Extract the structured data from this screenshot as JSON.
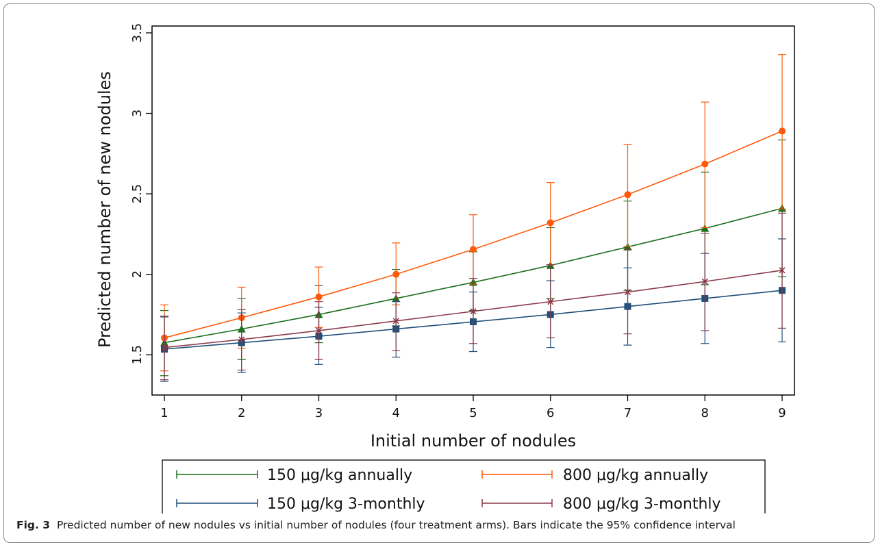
{
  "chart_data": {
    "type": "line",
    "xlabel": "Initial number of nodules",
    "ylabel": "Predicted number of new nodules",
    "xlim": [
      1,
      9
    ],
    "ylim": [
      1.25,
      3.5
    ],
    "x": [
      1,
      2,
      3,
      4,
      5,
      6,
      7,
      8,
      9
    ],
    "x_ticks": [
      "1",
      "2",
      "3",
      "4",
      "5",
      "6",
      "7",
      "8",
      "9"
    ],
    "y_ticks": [
      1.5,
      2,
      2.5,
      3,
      3.5
    ],
    "y_tick_labels": [
      "1.5",
      "2",
      "2.5",
      "3",
      "3.5"
    ],
    "grid": false,
    "legend_position": "bottom",
    "series": [
      {
        "name": "150 μg/kg annually",
        "color": "#1a6e1a",
        "marker": "triangle",
        "values": [
          1.575,
          1.66,
          1.75,
          1.85,
          1.95,
          2.055,
          2.17,
          2.285,
          2.41
        ],
        "lower": [
          1.37,
          1.47,
          1.575,
          1.68,
          1.775,
          1.85,
          1.9,
          1.935,
          1.985
        ],
        "upper": [
          1.775,
          1.85,
          1.93,
          2.03,
          2.14,
          2.29,
          2.455,
          2.635,
          2.835
        ]
      },
      {
        "name": "800 μg/kg annually",
        "color": "#ff5a0a",
        "marker": "circle",
        "values": [
          1.605,
          1.73,
          1.86,
          2.0,
          2.155,
          2.32,
          2.495,
          2.685,
          2.89
        ],
        "lower": [
          1.4,
          1.54,
          1.67,
          1.81,
          1.94,
          2.06,
          2.175,
          2.29,
          2.405
        ],
        "upper": [
          1.81,
          1.92,
          2.045,
          2.195,
          2.37,
          2.57,
          2.805,
          3.07,
          3.365
        ]
      },
      {
        "name": "150 μg/kg 3-monthly",
        "color": "#1f4e79",
        "marker": "square",
        "values": [
          1.535,
          1.575,
          1.615,
          1.66,
          1.705,
          1.75,
          1.8,
          1.85,
          1.9
        ],
        "lower": [
          1.335,
          1.39,
          1.44,
          1.485,
          1.52,
          1.545,
          1.56,
          1.57,
          1.58
        ],
        "upper": [
          1.735,
          1.76,
          1.795,
          1.83,
          1.89,
          1.96,
          2.04,
          2.13,
          2.22
        ]
      },
      {
        "name": "800 μg/kg 3-monthly",
        "color": "#8b3a4a",
        "marker": "x",
        "values": [
          1.545,
          1.595,
          1.65,
          1.71,
          1.77,
          1.83,
          1.89,
          1.955,
          2.025
        ],
        "lower": [
          1.345,
          1.405,
          1.47,
          1.525,
          1.57,
          1.605,
          1.63,
          1.65,
          1.665
        ],
        "upper": [
          1.74,
          1.78,
          1.83,
          1.885,
          1.975,
          2.06,
          2.155,
          2.255,
          2.38
        ]
      }
    ],
    "legend_entries": [
      {
        "label": "150 μg/kg annually",
        "color": "#1a6e1a"
      },
      {
        "label": "800 μg/kg annually",
        "color": "#ff5a0a"
      },
      {
        "label": "150 μg/kg 3-monthly",
        "color": "#1f4e79"
      },
      {
        "label": "800 μg/kg 3-monthly",
        "color": "#8b3a4a"
      }
    ]
  },
  "caption": {
    "label": "Fig. 3",
    "text": "Predicted number of new nodules vs initial number of nodules (four treatment arms). Bars indicate the 95% confidence interval"
  }
}
